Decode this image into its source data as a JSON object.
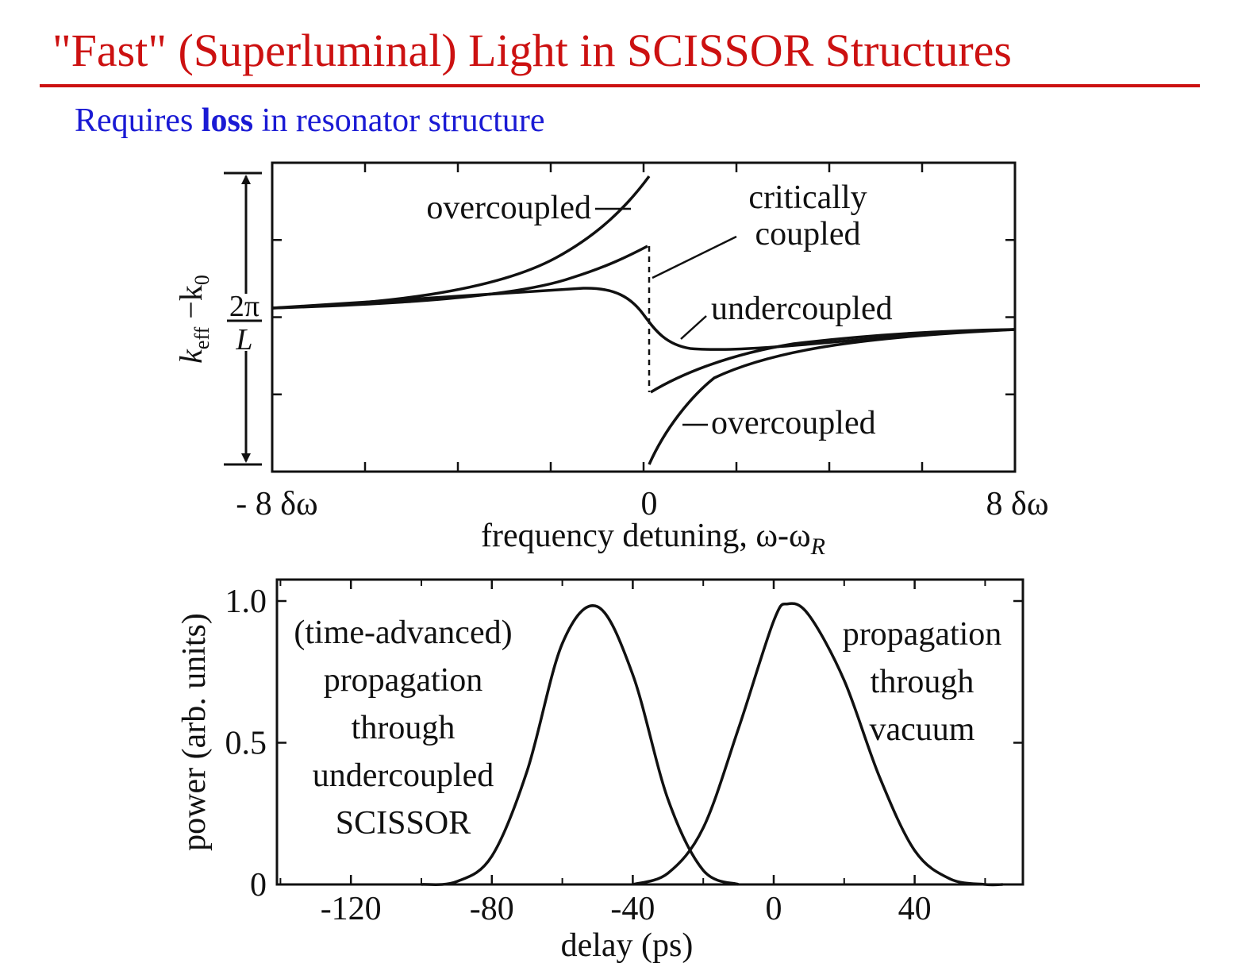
{
  "slide": {
    "title": "\"Fast\" (Superluminal) Light in SCISSOR Structures",
    "subtitle_pre": "Requires ",
    "subtitle_bold": "loss",
    "subtitle_post": " in resonator structure"
  },
  "chart_data": [
    {
      "type": "line",
      "xlabel": "frequency detuning, ω-ω",
      "xlabel_subscript": "R",
      "xtick_labels": [
        "- 8 δω",
        "0",
        "8 δω"
      ],
      "xlim": [
        -8,
        8
      ],
      "ylabel_parts": [
        "k",
        "eff",
        " −k",
        "0"
      ],
      "y_span_label_top": "2π",
      "y_span_label_bottom": "L",
      "ylim": [
        -1,
        1
      ],
      "annotations": [
        "overcoupled",
        "critically",
        "coupled",
        "undercoupled",
        "overcoupled"
      ],
      "series": [
        {
          "x": [
            -8,
            -6,
            -4,
            -2,
            -1,
            -0.5,
            -0.01,
            0.01,
            0.5,
            1,
            2,
            4,
            6,
            8
          ],
          "y": [
            0.0,
            0.03,
            0.07,
            0.14,
            0.26,
            0.42,
            1.0,
            -1.0,
            -0.5,
            -0.32,
            -0.2,
            -0.15,
            -0.13,
            -0.12
          ]
        },
        {
          "x": [
            -8,
            -6,
            -4,
            -2,
            -1,
            -0.5,
            -0.01,
            0.01,
            0.5,
            1,
            2,
            4,
            6,
            8
          ],
          "y": [
            0.0,
            0.03,
            0.06,
            0.12,
            0.2,
            0.27,
            0.4,
            -0.55,
            -0.47,
            -0.4,
            -0.28,
            -0.18,
            -0.14,
            -0.12
          ]
        },
        {
          "x": [
            -8,
            -6,
            -4,
            -2,
            -1,
            -0.5,
            0,
            0.5,
            1,
            2,
            4,
            6,
            8
          ],
          "y": [
            0.0,
            0.02,
            0.05,
            0.1,
            0.12,
            0.04,
            -0.05,
            -0.17,
            -0.25,
            -0.27,
            -0.22,
            -0.18,
            -0.15
          ]
        }
      ]
    },
    {
      "type": "line",
      "xlabel": "delay (ps)",
      "ylabel": "power (arb. units)",
      "xlim": [
        -140,
        73
      ],
      "ylim": [
        0,
        1.0
      ],
      "xticks": [
        -120,
        -80,
        -40,
        0,
        40
      ],
      "yticks": [
        0,
        0.5,
        1.0
      ],
      "ytick_labels": [
        "0",
        "0.5",
        "1.0"
      ],
      "annotations": {
        "left": [
          "(time-advanced)",
          "propagation",
          "through",
          "undercoupled",
          "SCISSOR"
        ],
        "right": [
          "propagation",
          "through",
          "vacuum"
        ]
      },
      "series": [
        {
          "x": [
            -100,
            -90,
            -80,
            -70,
            -60,
            -50,
            -40,
            -30,
            -20,
            -10
          ],
          "y": [
            0.0,
            0.01,
            0.1,
            0.4,
            0.85,
            0.98,
            0.74,
            0.3,
            0.05,
            0.0
          ]
        },
        {
          "x": [
            -40,
            -30,
            -20,
            -10,
            0,
            4,
            10,
            20,
            30,
            40,
            50,
            60,
            65
          ],
          "y": [
            0.0,
            0.04,
            0.2,
            0.55,
            0.93,
            0.99,
            0.95,
            0.72,
            0.38,
            0.12,
            0.02,
            0.0,
            0.0
          ]
        }
      ]
    }
  ]
}
